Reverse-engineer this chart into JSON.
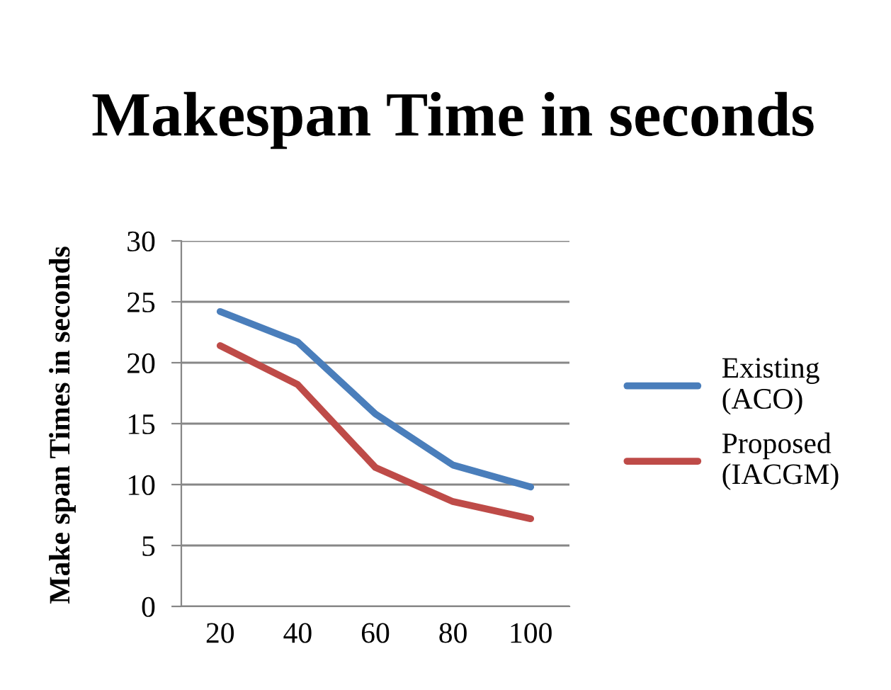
{
  "chart_data": {
    "type": "line",
    "title": "Makespan Time in seconds",
    "ylabel": "Make span Times in seconds",
    "categories": [
      "20",
      "40",
      "60",
      "80",
      "100"
    ],
    "series": [
      {
        "name": "Existing (ACO)",
        "color": "#4a7ebb",
        "values": [
          24.2,
          21.7,
          15.8,
          11.6,
          9.8
        ]
      },
      {
        "name": "Proposed (IACGM)",
        "color": "#be4b48",
        "values": [
          21.4,
          18.2,
          11.4,
          8.6,
          7.2
        ]
      }
    ],
    "ylim": [
      0,
      30
    ],
    "yticks": [
      0,
      5,
      10,
      15,
      20,
      25,
      30
    ],
    "grid": "y",
    "legend": "right",
    "marker": "none",
    "line_style": "solid"
  }
}
